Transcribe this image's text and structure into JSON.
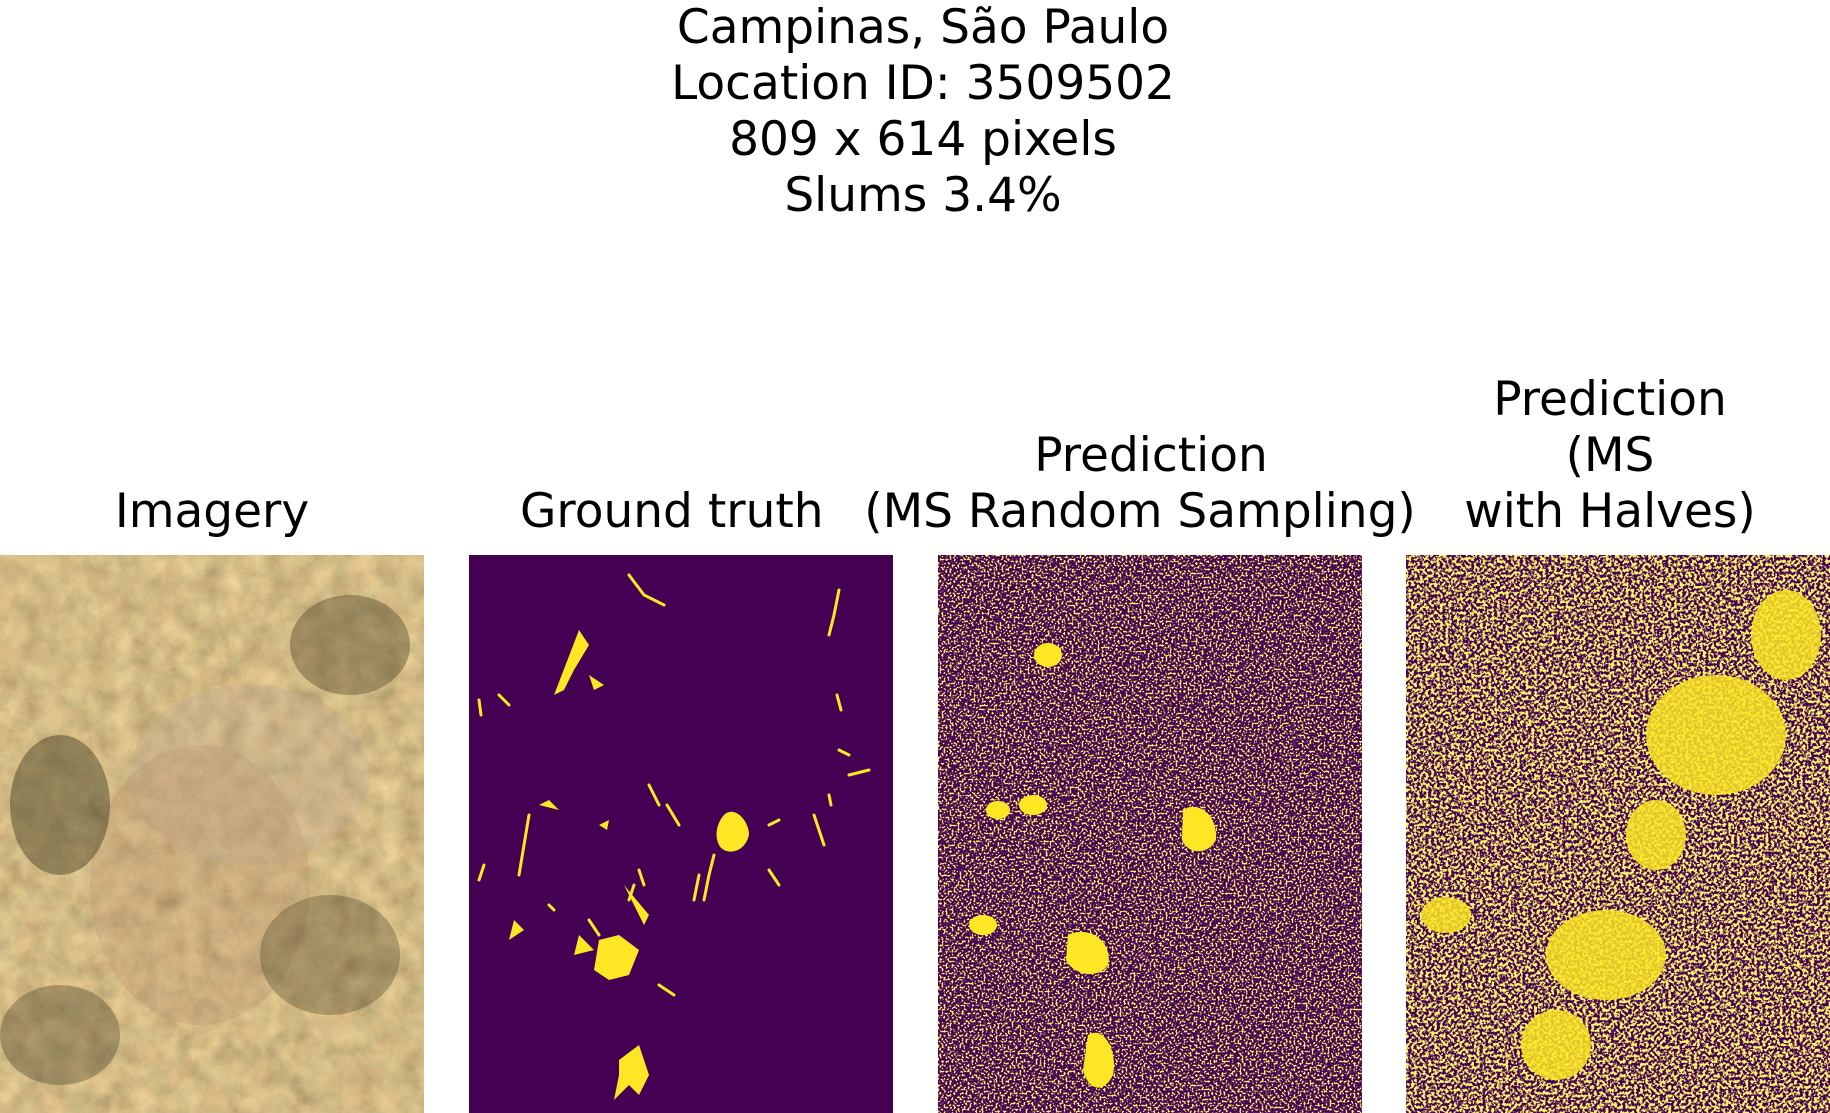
{
  "figure": {
    "suptitle_lines": [
      "Campinas, São Paulo",
      "Location ID: 3509502",
      "809 x 614 pixels",
      "Slums 3.4%"
    ]
  },
  "panels": [
    {
      "title_lines": [
        "Imagery"
      ],
      "kind": "satellite-rgb"
    },
    {
      "title_lines": [
        "Ground truth"
      ],
      "kind": "binary-mask",
      "background": "#440154",
      "foreground": "#fde725"
    },
    {
      "title_lines": [
        "Prediction",
        "(MS Random Sampling)"
      ],
      "kind": "binary-mask",
      "background": "#440154",
      "foreground": "#fde725"
    },
    {
      "title_lines": [
        "Prediction",
        "(MS",
        "with Halves)"
      ],
      "kind": "binary-mask",
      "background": "#440154",
      "foreground": "#fde725"
    }
  ]
}
